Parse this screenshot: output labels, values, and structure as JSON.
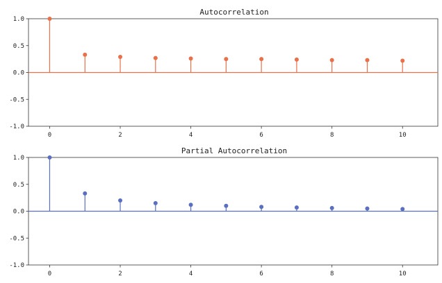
{
  "chart_data": [
    {
      "type": "stem",
      "title": "Autocorrelation",
      "color": "#e8704a",
      "lags": [
        0,
        1,
        2,
        3,
        4,
        5,
        6,
        7,
        8,
        9,
        10
      ],
      "values": [
        1.0,
        0.33,
        0.29,
        0.27,
        0.26,
        0.25,
        0.25,
        0.24,
        0.23,
        0.23,
        0.22
      ],
      "xlim": [
        -0.6,
        11.0
      ],
      "ylim": [
        -1.0,
        1.0
      ],
      "xticks": [
        0,
        2,
        4,
        6,
        8,
        10
      ],
      "xtick_labels": [
        "0",
        "2",
        "4",
        "6",
        "8",
        "10"
      ],
      "yticks": [
        -1.0,
        -0.5,
        0.0,
        0.5,
        1.0
      ],
      "ytick_labels": [
        "-1.0",
        "-0.5",
        "0.0",
        "0.5",
        "1.0"
      ]
    },
    {
      "type": "stem",
      "title": "Partial Autocorrelation",
      "color": "#5a6fbf",
      "lags": [
        0,
        1,
        2,
        3,
        4,
        5,
        6,
        7,
        8,
        9,
        10
      ],
      "values": [
        1.0,
        0.33,
        0.2,
        0.15,
        0.12,
        0.1,
        0.08,
        0.07,
        0.06,
        0.05,
        0.04
      ],
      "xlim": [
        -0.6,
        11.0
      ],
      "ylim": [
        -1.0,
        1.0
      ],
      "xticks": [
        0,
        2,
        4,
        6,
        8,
        10
      ],
      "xtick_labels": [
        "0",
        "2",
        "4",
        "6",
        "8",
        "10"
      ],
      "yticks": [
        -1.0,
        -0.5,
        0.0,
        0.5,
        1.0
      ],
      "ytick_labels": [
        "-1.0",
        "-0.5",
        "0.0",
        "0.5",
        "1.0"
      ]
    }
  ]
}
